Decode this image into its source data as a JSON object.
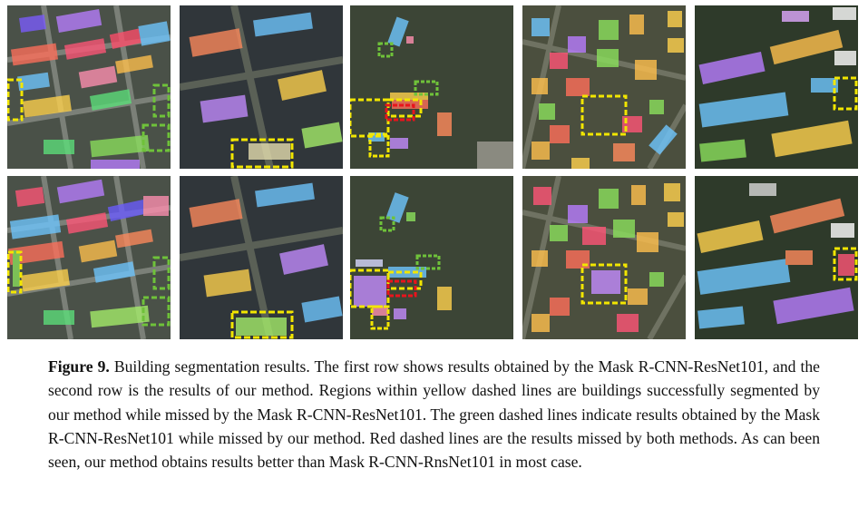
{
  "figure": {
    "label": "Figure 9.",
    "caption": "Building segmentation results. The first row shows results obtained by the Mask R-CNN-ResNet101, and the second row is the results of our method. Regions within yellow dashed lines are buildings successfully segmented by our method while missed by the Mask R-CNN-ResNet101. The green dashed lines indicate results obtained by the Mask R-CNN-ResNet101 while missed by our method. Red dashed lines are the results missed by both methods. As can been seen, our method obtains results better than Mask R-CNN-RnsNet101 in most case."
  },
  "panels": {
    "rows": [
      "Mask R-CNN-ResNet101",
      "our method"
    ],
    "columns": 5
  },
  "colors": {
    "missed_by_baseline": "#f2e600",
    "missed_by_ours": "#6fc23a",
    "missed_by_both": "#e8141c"
  }
}
